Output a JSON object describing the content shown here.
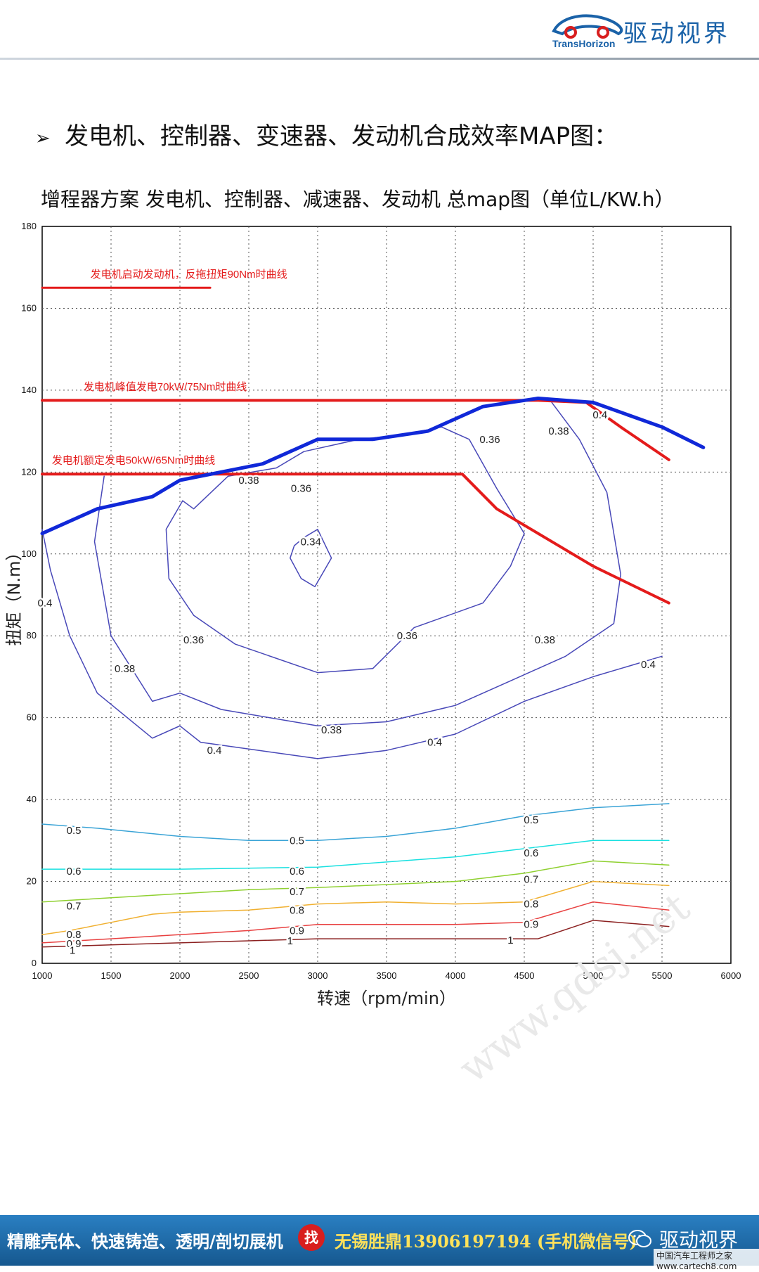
{
  "header": {
    "logo_en": "TransHorizon",
    "logo_cn": "驱动视界"
  },
  "page": {
    "bullet_title": "发电机、控制器、变速器、发动机合成效率MAP图：",
    "chart_title": "增程器方案 发电机、控制器、减速器、发动机 总map图（单位L/KW.h）"
  },
  "watermark": "www.qdsj.net",
  "footer": {
    "ad_text": "精雕壳体、快速铸造、透明/剖切展机",
    "find_badge": "找",
    "phone_text": "无锡胜鼎13906197194 (手机微信号)",
    "brand": "驱动视界",
    "site_stamp": "中国汽车工程师之家 www.cartech8.com"
  },
  "colors": {
    "limit_line": "#e41b1b",
    "max_torque": "#1028d8",
    "contour_low": "#4848b8",
    "footer_bg": "#1f6fb2"
  },
  "chart_data": {
    "type": "line",
    "title": "增程器方案 发电机、控制器、减速器、发动机 总map图（单位L/KW.h）",
    "xlabel": "转速（rpm/min）",
    "ylabel": "扭矩（N.m）",
    "xlim": [
      1000,
      6000
    ],
    "ylim": [
      0,
      180
    ],
    "xticks": [
      1000,
      1500,
      2000,
      2500,
      3000,
      3500,
      4000,
      4500,
      5000,
      5500,
      6000
    ],
    "yticks": [
      0,
      20,
      40,
      60,
      80,
      100,
      120,
      140,
      160,
      180
    ],
    "grid": true,
    "series": [
      {
        "name": "max_torque",
        "kind": "boundary",
        "color": "#1028d8",
        "width": 5,
        "x": [
          1000,
          1400,
          1800,
          2000,
          2600,
          3000,
          3400,
          3800,
          4200,
          4600,
          5000,
          5500,
          5800
        ],
        "y": [
          105,
          111,
          114,
          118,
          122,
          128,
          128,
          130,
          136,
          138,
          137,
          131,
          126
        ]
      },
      {
        "name": "发电机启动发动机，反拖扭矩90Nm时曲线",
        "kind": "limit",
        "color": "#e41b1b",
        "width": 3,
        "x": [
          1000,
          2220
        ],
        "y": [
          165,
          165
        ]
      },
      {
        "name": "发电机峰值发电70kW/75Nm时曲线",
        "kind": "limit",
        "color": "#e41b1b",
        "width": 4,
        "x": [
          1000,
          4600,
          4950,
          5200,
          5550
        ],
        "y": [
          137.5,
          137.5,
          137,
          131,
          123
        ]
      },
      {
        "name": "发电机额定发电50kW/65Nm时曲线",
        "kind": "limit",
        "color": "#e41b1b",
        "width": 4,
        "x": [
          1000,
          4050,
          4300,
          5000,
          5550
        ],
        "y": [
          119.5,
          119.5,
          111,
          97,
          88
        ]
      },
      {
        "name": "0.34",
        "kind": "contour",
        "level": 0.34,
        "color": "#4848b8",
        "x": [
          2800,
          2830,
          2900,
          3000,
          3100,
          2980,
          2880,
          2800
        ],
        "y": [
          99,
          102,
          104,
          106,
          99,
          92,
          94,
          99
        ]
      },
      {
        "name": "0.36",
        "kind": "contour",
        "level": 0.36,
        "color": "#4848b8",
        "x": [
          2020,
          1900,
          1920,
          2100,
          2400,
          3000,
          3400,
          3700,
          4200,
          4400,
          4500,
          4300,
          4100,
          3900,
          3600,
          3300,
          2900,
          2700,
          2350,
          2100,
          2020
        ],
        "y": [
          113,
          106,
          94,
          85,
          78,
          71,
          72,
          82,
          88,
          97,
          105,
          116,
          128,
          131,
          129,
          128,
          125,
          121,
          119,
          111,
          113
        ]
      },
      {
        "name": "0.38",
        "kind": "contour",
        "level": 0.38,
        "color": "#4848b8",
        "x": [
          1450,
          1380,
          1500,
          1800,
          2000,
          2300,
          3000,
          3500,
          4000,
          4400,
          4800,
          5150,
          5200,
          5100,
          4900,
          4700
        ],
        "y": [
          119,
          103,
          80,
          64,
          66,
          62,
          58,
          59,
          63,
          69,
          75,
          83,
          95,
          115,
          128,
          137
        ]
      },
      {
        "name": "0.4",
        "kind": "contour",
        "level": 0.4,
        "color": "#4848b8",
        "x": [
          1000,
          1060,
          1200,
          1400,
          1800,
          2000,
          2150,
          3000,
          3500,
          4000,
          4500,
          5000,
          5500
        ],
        "y": [
          106,
          96,
          80,
          66,
          55,
          58,
          54,
          50,
          52,
          56,
          64,
          70,
          75
        ]
      },
      {
        "name": "0.5",
        "kind": "contour",
        "level": 0.5,
        "color": "#39a3d6",
        "x": [
          1000,
          1400,
          2000,
          2500,
          3000,
          3500,
          4000,
          4500,
          5000,
          5550
        ],
        "y": [
          34,
          33,
          31,
          30,
          30,
          31,
          33,
          36,
          38,
          39
        ]
      },
      {
        "name": "0.6",
        "kind": "contour",
        "level": 0.6,
        "color": "#18e0e0",
        "x": [
          1000,
          2000,
          3000,
          4000,
          5000,
          5550
        ],
        "y": [
          23,
          23,
          23.5,
          26,
          30,
          30
        ]
      },
      {
        "name": "0.7",
        "kind": "contour",
        "level": 0.7,
        "color": "#8fd030",
        "x": [
          1000,
          1500,
          2000,
          2500,
          3000,
          4000,
          4500,
          5000,
          5550
        ],
        "y": [
          15,
          16,
          17,
          18,
          18.5,
          20,
          22,
          25,
          24
        ]
      },
      {
        "name": "0.8",
        "kind": "contour",
        "level": 0.8,
        "color": "#f0b030",
        "x": [
          1000,
          1200,
          1500,
          1800,
          2000,
          2500,
          3000,
          3500,
          4000,
          4500,
          5000,
          5550
        ],
        "y": [
          7,
          8,
          10,
          12,
          12.5,
          13,
          14.5,
          15,
          14.5,
          15,
          20,
          19
        ]
      },
      {
        "name": "0.9",
        "kind": "contour",
        "level": 0.9,
        "color": "#e84040",
        "x": [
          1000,
          1500,
          2000,
          2500,
          3000,
          3500,
          4000,
          4500,
          5000,
          5550
        ],
        "y": [
          5,
          6,
          7,
          8,
          9.5,
          9.5,
          9.5,
          10,
          15,
          13
        ]
      },
      {
        "name": "1",
        "kind": "contour",
        "level": 1.0,
        "color": "#8b2020",
        "x": [
          1000,
          1500,
          2000,
          2500,
          3000,
          3500,
          4000,
          4600,
          5000,
          5550
        ],
        "y": [
          4,
          4.5,
          5,
          5.5,
          6,
          6,
          6,
          6,
          10.5,
          9
        ]
      }
    ],
    "annotations": [
      {
        "text": "发电机启动发动机，反拖扭矩90Nm时曲线",
        "x": 1350,
        "y": 167.5,
        "color": "#e41b1b"
      },
      {
        "text": "发电机峰值发电70kW/75Nm时曲线",
        "x": 1300,
        "y": 140,
        "color": "#e41b1b"
      },
      {
        "text": "发电机额定发电50kW/65Nm时曲线",
        "x": 1070,
        "y": 122,
        "color": "#e41b1b"
      }
    ],
    "contour_labels": [
      {
        "text": "0.34",
        "x": 2950,
        "y": 103
      },
      {
        "text": "0.36",
        "x": 2880,
        "y": 116
      },
      {
        "text": "0.36",
        "x": 2100,
        "y": 79
      },
      {
        "text": "0.36",
        "x": 3650,
        "y": 80
      },
      {
        "text": "0.36",
        "x": 4250,
        "y": 128
      },
      {
        "text": "0.38",
        "x": 2500,
        "y": 118
      },
      {
        "text": "0.38",
        "x": 1600,
        "y": 72
      },
      {
        "text": "0.38",
        "x": 3100,
        "y": 57
      },
      {
        "text": "0.38",
        "x": 4650,
        "y": 79
      },
      {
        "text": "0.38",
        "x": 4750,
        "y": 130
      },
      {
        "text": "0.4",
        "x": 1020,
        "y": 88
      },
      {
        "text": "0.4",
        "x": 2250,
        "y": 52
      },
      {
        "text": "0.4",
        "x": 3850,
        "y": 54
      },
      {
        "text": "0.4",
        "x": 5400,
        "y": 73
      },
      {
        "text": "0.4",
        "x": 5050,
        "y": 134
      },
      {
        "text": "0.5",
        "x": 1230,
        "y": 32.5
      },
      {
        "text": "0.5",
        "x": 2850,
        "y": 30
      },
      {
        "text": "0.5",
        "x": 4550,
        "y": 35
      },
      {
        "text": "0.6",
        "x": 1230,
        "y": 22.5
      },
      {
        "text": "0.6",
        "x": 2850,
        "y": 22.5
      },
      {
        "text": "0.6",
        "x": 4550,
        "y": 27
      },
      {
        "text": "0.7",
        "x": 1230,
        "y": 14
      },
      {
        "text": "0.7",
        "x": 2850,
        "y": 17.5
      },
      {
        "text": "0.7",
        "x": 4550,
        "y": 20.5
      },
      {
        "text": "0.8",
        "x": 1230,
        "y": 7
      },
      {
        "text": "0.8",
        "x": 2850,
        "y": 13
      },
      {
        "text": "0.8",
        "x": 4550,
        "y": 14.5
      },
      {
        "text": "0.9",
        "x": 1230,
        "y": 4.8
      },
      {
        "text": "0.9",
        "x": 2850,
        "y": 8
      },
      {
        "text": "0.9",
        "x": 4550,
        "y": 9.5
      },
      {
        "text": "1",
        "x": 1220,
        "y": 3.2
      },
      {
        "text": "1",
        "x": 2800,
        "y": 5.5
      },
      {
        "text": "1",
        "x": 4400,
        "y": 5.7
      }
    ]
  }
}
